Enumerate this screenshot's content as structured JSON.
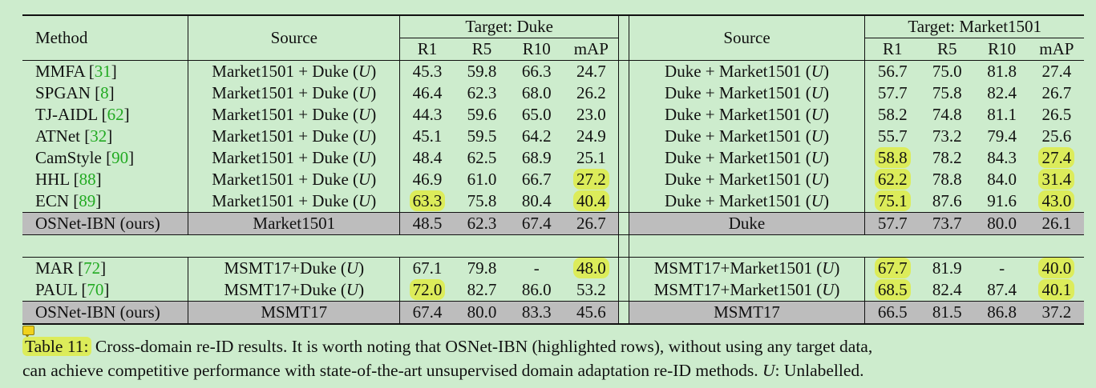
{
  "table": {
    "headers": {
      "method": "Method",
      "source": "Source",
      "target_duke": "Target: Duke",
      "target_market": "Target: Market1501",
      "metrics": [
        "R1",
        "R5",
        "R10",
        "mAP"
      ]
    },
    "rows": [
      {
        "method": "MMFA",
        "ref": "31",
        "source_a": "Market1501 + Duke",
        "source_a_u": "U",
        "duke": [
          "45.3",
          "59.8",
          "66.3",
          "24.7"
        ],
        "source_b": "Duke + Market1501",
        "source_b_u": "U",
        "market": [
          "56.7",
          "75.0",
          "81.8",
          "27.4"
        ]
      },
      {
        "method": "SPGAN",
        "ref": "8",
        "source_a": "Market1501 + Duke",
        "source_a_u": "U",
        "duke": [
          "46.4",
          "62.3",
          "68.0",
          "26.2"
        ],
        "source_b": "Duke + Market1501",
        "source_b_u": "U",
        "market": [
          "57.7",
          "75.8",
          "82.4",
          "26.7"
        ]
      },
      {
        "method": "TJ-AIDL",
        "ref": "62",
        "source_a": "Market1501 + Duke",
        "source_a_u": "U",
        "duke": [
          "44.3",
          "59.6",
          "65.0",
          "23.0"
        ],
        "source_b": "Duke + Market1501",
        "source_b_u": "U",
        "market": [
          "58.2",
          "74.8",
          "81.1",
          "26.5"
        ]
      },
      {
        "method": "ATNet",
        "ref": "32",
        "source_a": "Market1501 + Duke",
        "source_a_u": "U",
        "duke": [
          "45.1",
          "59.5",
          "64.2",
          "24.9"
        ],
        "source_b": "Duke + Market1501",
        "source_b_u": "U",
        "market": [
          "55.7",
          "73.2",
          "79.4",
          "25.6"
        ]
      },
      {
        "method": "CamStyle",
        "ref": "90",
        "source_a": "Market1501 + Duke",
        "source_a_u": "U",
        "duke": [
          "48.4",
          "62.5",
          "68.9",
          "25.1"
        ],
        "source_b": "Duke + Market1501",
        "source_b_u": "U",
        "market": [
          "58.8",
          "78.2",
          "84.3",
          "27.4"
        ]
      },
      {
        "method": "HHL",
        "ref": "88",
        "source_a": "Market1501 + Duke",
        "source_a_u": "U",
        "duke": [
          "46.9",
          "61.0",
          "66.7",
          "27.2"
        ],
        "source_b": "Duke + Market1501",
        "source_b_u": "U",
        "market": [
          "62.2",
          "78.8",
          "84.0",
          "31.4"
        ]
      },
      {
        "method": "ECN",
        "ref": "89",
        "source_a": "Market1501 + Duke",
        "source_a_u": "U",
        "duke": [
          "63.3",
          "75.8",
          "80.4",
          "40.4"
        ],
        "source_b": "Duke + Market1501",
        "source_b_u": "U",
        "market": [
          "75.1",
          "87.6",
          "91.6",
          "43.0"
        ]
      },
      {
        "method": "OSNet-IBN (ours)",
        "source_a": "Market1501",
        "duke": [
          "48.5",
          "62.3",
          "67.4",
          "26.7"
        ],
        "source_b": "Duke",
        "market": [
          "57.7",
          "73.7",
          "80.0",
          "26.1"
        ]
      },
      {
        "method": "MAR",
        "ref": "72",
        "source_a": "MSMT17+Duke",
        "source_a_u": "U",
        "duke": [
          "67.1",
          "79.8",
          "-",
          "48.0"
        ],
        "source_b": "MSMT17+Market1501",
        "source_b_u": "U",
        "market": [
          "67.7",
          "81.9",
          "-",
          "40.0"
        ]
      },
      {
        "method": "PAUL",
        "ref": "70",
        "source_a": "MSMT17+Duke",
        "source_a_u": "U",
        "duke": [
          "72.0",
          "82.7",
          "86.0",
          "53.2"
        ],
        "source_b": "MSMT17+Market1501",
        "source_b_u": "U",
        "market": [
          "68.5",
          "82.4",
          "87.4",
          "40.1"
        ]
      },
      {
        "method": "OSNet-IBN (ours)",
        "source_a": "MSMT17",
        "duke": [
          "67.4",
          "80.0",
          "83.3",
          "45.6"
        ],
        "source_b": "MSMT17",
        "market": [
          "66.5",
          "81.5",
          "86.8",
          "37.2"
        ]
      }
    ]
  },
  "caption": {
    "label": "Table 11:",
    "text_1": "Cross-domain re-ID results. It is worth noting that OSNet-IBN (highlighted rows), without using any target data,",
    "text_2": "can achieve competitive performance with state-of-the-art unsupervised domain adaptation re-ID methods.",
    "u_symbol": "U",
    "u_text": ": Unlabelled."
  },
  "colors": {
    "background": "#cdeccd",
    "highlight": "#dcec5a",
    "ours_row": "#bdbdbd",
    "reference": "#22aa22"
  }
}
